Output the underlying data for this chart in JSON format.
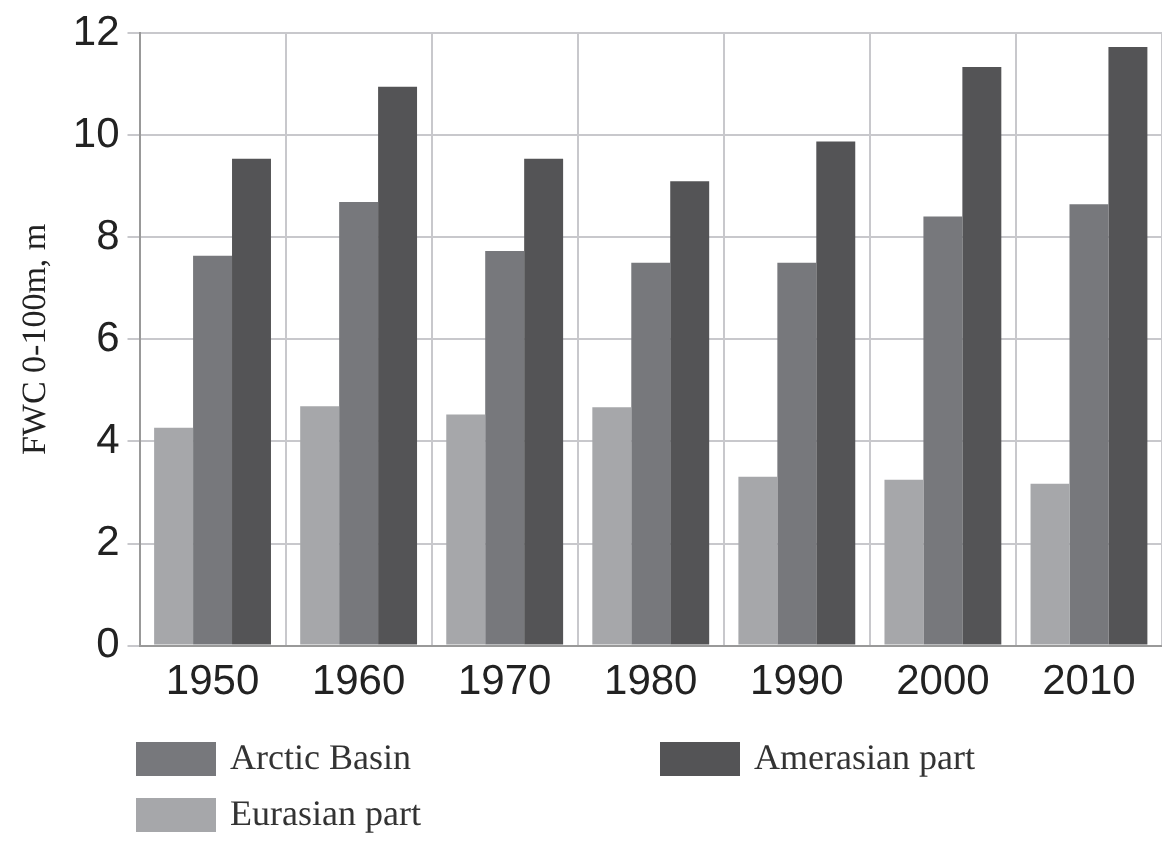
{
  "chart_data": {
    "type": "bar",
    "ylabel": "FWC 0-100m, m",
    "categories": [
      "1950",
      "1960",
      "1970",
      "1980",
      "1990",
      "2000",
      "2010"
    ],
    "series": [
      {
        "name": "Eurasian part",
        "color": "#a6a7aa",
        "values": [
          4.27,
          4.69,
          4.53,
          4.67,
          3.31,
          3.25,
          3.17
        ]
      },
      {
        "name": "Arctic Basin",
        "color": "#77787c",
        "values": [
          7.64,
          8.69,
          7.73,
          7.5,
          7.5,
          8.41,
          8.65
        ]
      },
      {
        "name": "Amerasian part",
        "color": "#545456",
        "values": [
          9.54,
          10.95,
          9.54,
          9.1,
          9.88,
          11.34,
          11.73
        ]
      }
    ],
    "ylim": [
      0,
      12
    ],
    "yticks": [
      0,
      2,
      4,
      6,
      8,
      10,
      12
    ],
    "grid": true,
    "legend": "bottom"
  }
}
